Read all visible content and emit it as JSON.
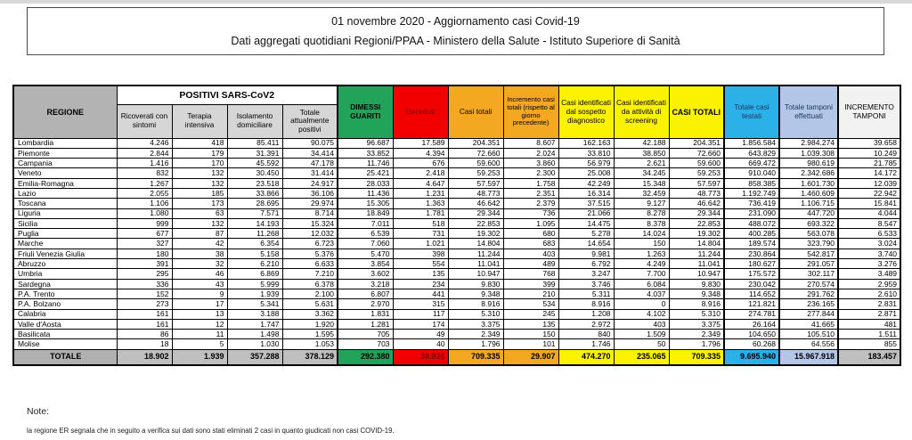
{
  "title_box": {
    "line1": "01 novembre 2020 - Aggiornamento casi Covid-19",
    "line2": "Dati aggregati quotidiani Regioni/PPAA - Ministero della Salute - Istituto Superiore di Sanità"
  },
  "table": {
    "region_header": "REGIONE",
    "group_header": "POSITIVI SARS-CoV2",
    "sub_headers": [
      "Ricoverati con sintomi",
      "Terapia intensiva",
      "Isolamento domiciliare",
      "Totale attualmente positivi"
    ],
    "columns": [
      "DIMESSI GUARITI",
      "Deceduti",
      "Casi totali",
      "Incremento casi totali (rispetto al giorno precedente)",
      "Casi identificati dal sospetto diagnostico",
      "Casi identificati da attività di screening",
      "CASI TOTALI",
      "Totale casi testati",
      "Totale tamponi effettuati",
      "INCREMENTO TAMPONI"
    ],
    "rows": [
      {
        "region": "Lombardia",
        "values": [
          "4.246",
          "418",
          "85.411",
          "90.075",
          "96.687",
          "17.589",
          "204.351",
          "8.607",
          "162.163",
          "42.188",
          "204.351",
          "1.856.584",
          "2.984.274",
          "39.658"
        ]
      },
      {
        "region": "Piemonte",
        "values": [
          "2.844",
          "179",
          "31.391",
          "34.414",
          "33.852",
          "4.394",
          "72.660",
          "2.024",
          "33.810",
          "38.850",
          "72.660",
          "643.829",
          "1.039.308",
          "10.249"
        ]
      },
      {
        "region": "Campania",
        "values": [
          "1.416",
          "170",
          "45.592",
          "47.178",
          "11.746",
          "676",
          "59.600",
          "3.860",
          "56.979",
          "2.621",
          "59.600",
          "669.472",
          "980.619",
          "21.785"
        ]
      },
      {
        "region": "Veneto",
        "values": [
          "832",
          "132",
          "30.450",
          "31.414",
          "25.421",
          "2.418",
          "59.253",
          "2.300",
          "25.008",
          "34.245",
          "59.253",
          "910.040",
          "2.342.686",
          "14.172"
        ]
      },
      {
        "region": "Emilia-Romagna",
        "values": [
          "1.267",
          "132",
          "23.518",
          "24.917",
          "28.033",
          "4.647",
          "57.597",
          "1.758",
          "42.249",
          "15.348",
          "57.597",
          "858.385",
          "1.601.730",
          "12.039"
        ]
      },
      {
        "region": "Lazio",
        "values": [
          "2.055",
          "185",
          "33.866",
          "36.106",
          "11.436",
          "1.231",
          "48.773",
          "2.351",
          "16.314",
          "32.459",
          "48.773",
          "1.192.749",
          "1.460.609",
          "22.942"
        ]
      },
      {
        "region": "Toscana",
        "values": [
          "1.106",
          "173",
          "28.695",
          "29.974",
          "15.305",
          "1.363",
          "46.642",
          "2.379",
          "37.515",
          "9.127",
          "46.642",
          "736.419",
          "1.106.715",
          "15.841"
        ]
      },
      {
        "region": "Liguria",
        "values": [
          "1.080",
          "63",
          "7.571",
          "8.714",
          "18.849",
          "1.781",
          "29.344",
          "736",
          "21.066",
          "8.278",
          "29.344",
          "231.090",
          "447.720",
          "4.044"
        ]
      },
      {
        "region": "Sicilia",
        "values": [
          "999",
          "132",
          "14.193",
          "15.324",
          "7.011",
          "518",
          "22.853",
          "1.095",
          "14.475",
          "8.378",
          "22.853",
          "488.072",
          "693.322",
          "8.547"
        ]
      },
      {
        "region": "Puglia",
        "values": [
          "677",
          "87",
          "11.268",
          "12.032",
          "6.539",
          "731",
          "19.302",
          "680",
          "5.278",
          "14.024",
          "19.302",
          "400.285",
          "563.078",
          "6.533"
        ]
      },
      {
        "region": "Marche",
        "values": [
          "327",
          "42",
          "6.354",
          "6.723",
          "7.060",
          "1.021",
          "14.804",
          "683",
          "14.654",
          "150",
          "14.804",
          "189.574",
          "323.790",
          "3.024"
        ]
      },
      {
        "region": "Friuli Venezia Giulia",
        "values": [
          "180",
          "38",
          "5.158",
          "5.376",
          "5.470",
          "398",
          "11.244",
          "403",
          "9.981",
          "1.263",
          "11.244",
          "230.864",
          "542.817",
          "3.740"
        ]
      },
      {
        "region": "Abruzzo",
        "values": [
          "391",
          "32",
          "6.210",
          "6.633",
          "3.854",
          "554",
          "11.041",
          "489",
          "6.792",
          "4.249",
          "11.041",
          "180.627",
          "291.057",
          "3.276"
        ]
      },
      {
        "region": "Umbria",
        "values": [
          "295",
          "46",
          "6.869",
          "7.210",
          "3.602",
          "135",
          "10.947",
          "768",
          "3.247",
          "7.700",
          "10.947",
          "175.572",
          "302.117",
          "3.489"
        ]
      },
      {
        "region": "Sardegna",
        "values": [
          "336",
          "43",
          "5.999",
          "6.378",
          "3.218",
          "234",
          "9.830",
          "399",
          "3.746",
          "6.084",
          "9.830",
          "230.042",
          "270.574",
          "2.959"
        ]
      },
      {
        "region": "P.A. Trento",
        "values": [
          "152",
          "9",
          "1.939",
          "2.100",
          "6.807",
          "441",
          "9.348",
          "210",
          "5.311",
          "4.037",
          "9.348",
          "114.652",
          "291.762",
          "2.610"
        ]
      },
      {
        "region": "P.A. Bolzano",
        "values": [
          "273",
          "17",
          "5.341",
          "5.631",
          "2.970",
          "315",
          "8.916",
          "534",
          "8.916",
          "0",
          "8.916",
          "121.821",
          "236.165",
          "2.831"
        ]
      },
      {
        "region": "Calabria",
        "values": [
          "161",
          "13",
          "3.188",
          "3.362",
          "1.831",
          "117",
          "5.310",
          "245",
          "1.208",
          "4.102",
          "5.310",
          "274.781",
          "277.844",
          "2.871"
        ]
      },
      {
        "region": "Valle d'Aosta",
        "values": [
          "161",
          "12",
          "1.747",
          "1.920",
          "1.281",
          "174",
          "3.375",
          "135",
          "2.972",
          "403",
          "3.375",
          "26.164",
          "41.665",
          "481"
        ]
      },
      {
        "region": "Basilicata",
        "values": [
          "86",
          "11",
          "1.498",
          "1.595",
          "705",
          "49",
          "2.349",
          "150",
          "840",
          "1.509",
          "2.349",
          "104.650",
          "105.510",
          "1.511"
        ]
      },
      {
        "region": "Molise",
        "values": [
          "18",
          "5",
          "1.030",
          "1.053",
          "703",
          "40",
          "1.796",
          "101",
          "1.746",
          "50",
          "1.796",
          "60.268",
          "64.556",
          "855"
        ]
      }
    ],
    "total": {
      "label": "TOTALE",
      "values": [
        "18.902",
        "1.939",
        "357.288",
        "378.129",
        "292.380",
        "38.826",
        "709.335",
        "29.907",
        "474.270",
        "235.065",
        "709.335",
        "9.695.940",
        "15.967.918",
        "183.457"
      ]
    }
  },
  "notes": {
    "heading": "Note:",
    "body": "la regione ER segnala che in seguito a verifica sui dati sono stati eliminati 2 casi in quanto giudicati non casi COVID-19."
  },
  "colors": {
    "green": "#21A45A",
    "red": "#F20000",
    "orange": "#F4A821",
    "yellow": "#FBF200",
    "light_blue": "#2BB0E8",
    "periwinkle": "#B4C6E7",
    "header_gray": "#B3B3B3",
    "subheader_gray": "#D6D6D6",
    "total_gray": "#BFBFBF",
    "dark_red_text": "#7A0000",
    "navy_text": "#17375E"
  }
}
